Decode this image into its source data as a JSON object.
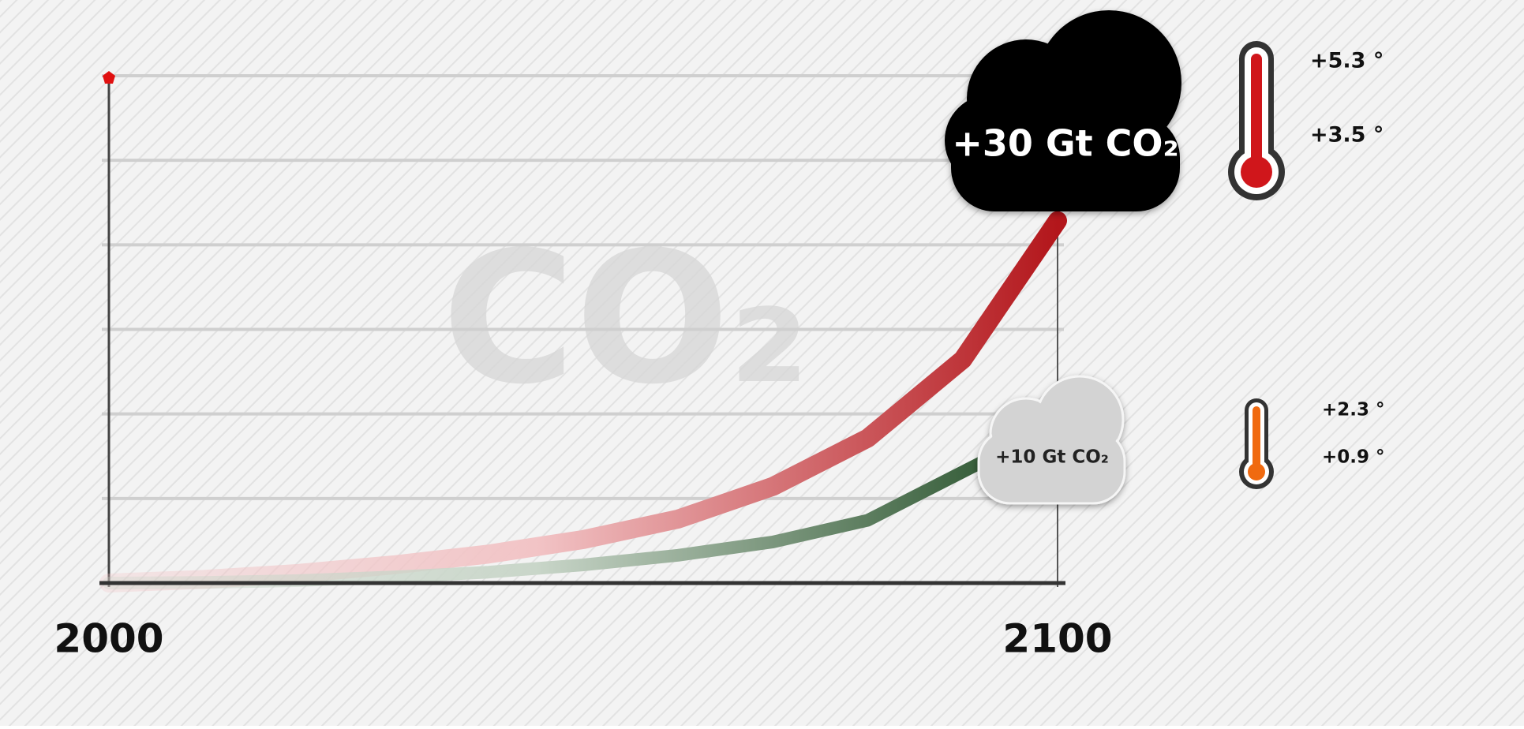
{
  "chart_data": {
    "type": "line",
    "watermark": "CO₂",
    "xlim": [
      2000,
      2100
    ],
    "xticks": [
      2000,
      2100
    ],
    "ylim": [
      0,
      42
    ],
    "ygrid": [
      7,
      14,
      21,
      28,
      35,
      42
    ],
    "series": [
      {
        "color": "#b3161b",
        "fade_color": "#f2c4c6",
        "x": [
          2000,
          2010,
          2020,
          2030,
          2040,
          2050,
          2060,
          2070,
          2080,
          2090,
          2100
        ],
        "values": [
          0,
          0.3,
          0.8,
          1.5,
          2.4,
          3.6,
          5.3,
          8,
          12,
          18.5,
          30
        ],
        "end_label": "+30 Gt CO₂",
        "temperature_labels": [
          "+5.3 °",
          "+3.5 °"
        ]
      },
      {
        "color": "#1e4a22",
        "fade_color": "#c9d6c9",
        "x": [
          2000,
          2010,
          2020,
          2030,
          2040,
          2050,
          2060,
          2070,
          2080,
          2092
        ],
        "values": [
          0,
          0.05,
          0.2,
          0.5,
          0.9,
          1.5,
          2.3,
          3.4,
          5.2,
          10
        ],
        "end_label": "+10 Gt CO₂",
        "temperature_labels": [
          "+2.3 °",
          "+0.9 °"
        ]
      }
    ]
  }
}
